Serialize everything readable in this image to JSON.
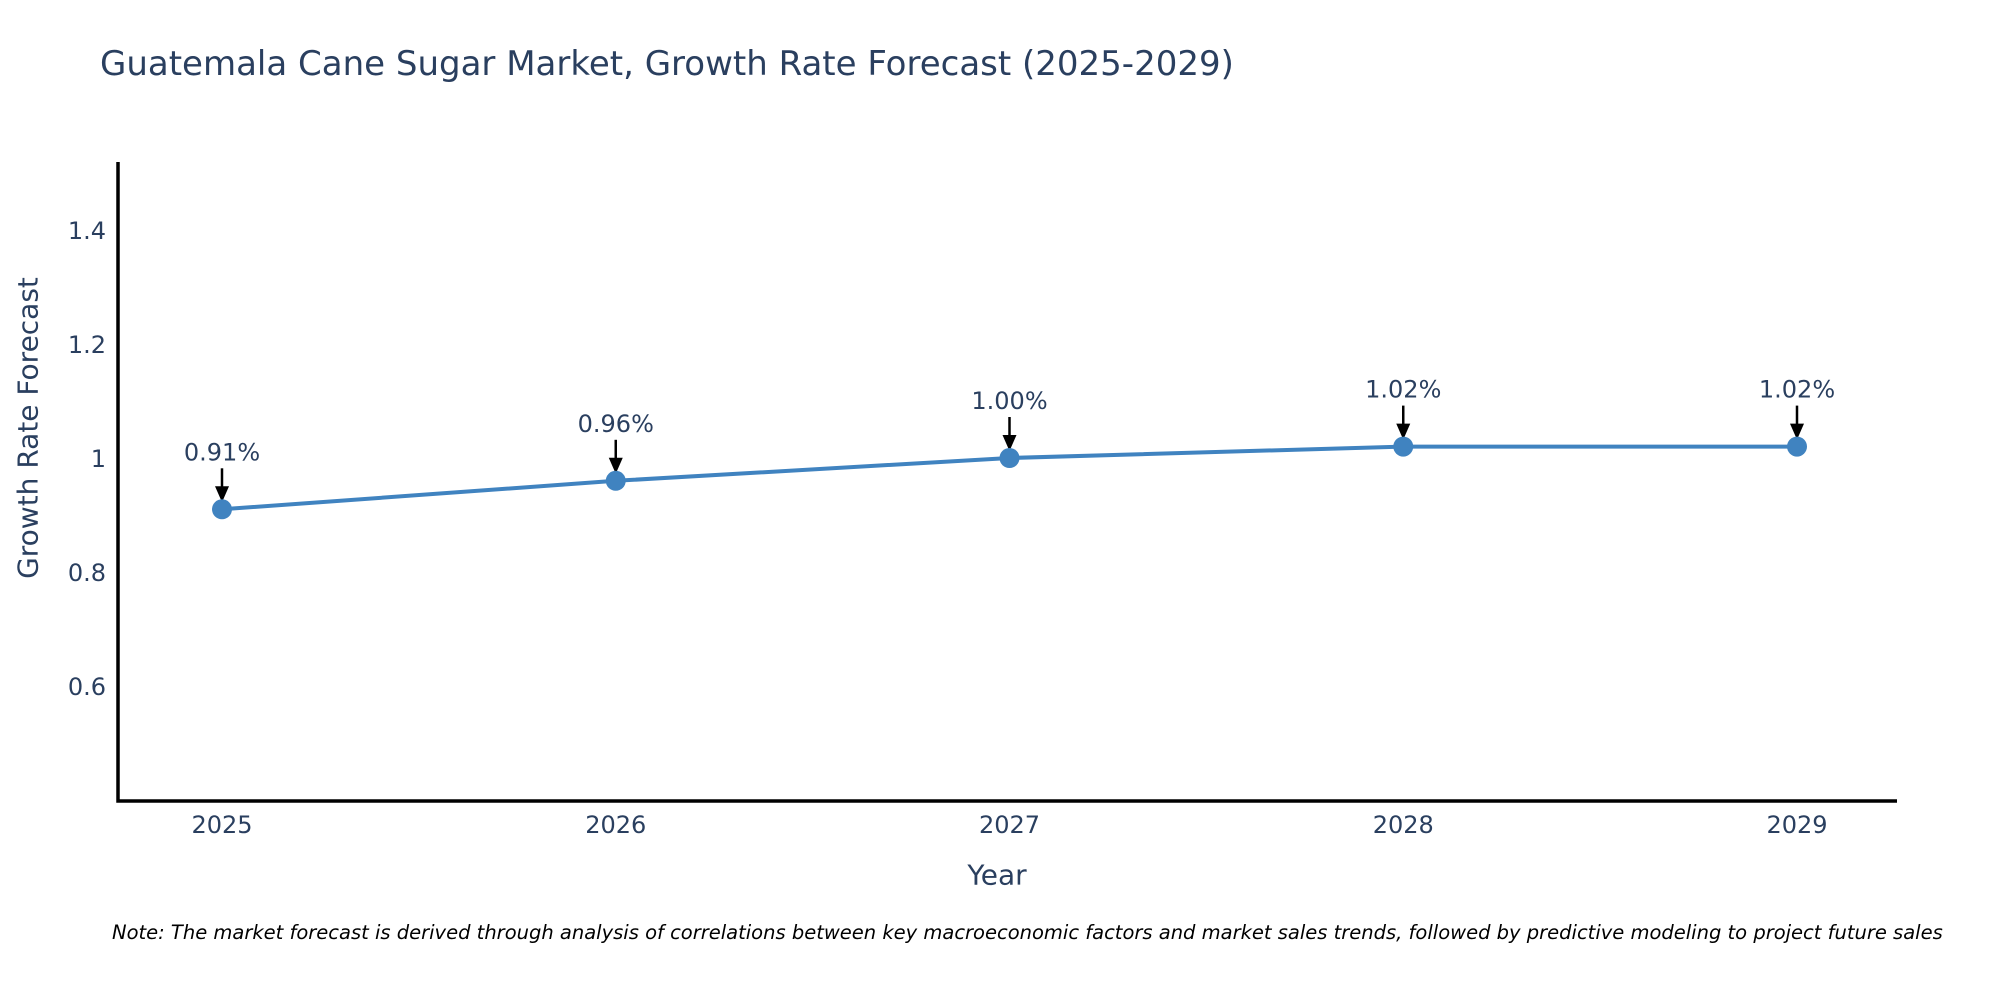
{
  "title": "Guatemala Cane Sugar Market, Growth Rate Forecast (2025-2029)",
  "note": "Note: The market forecast is derived through analysis of correlations between key macroeconomic factors and market sales trends, followed by predictive modeling to project future sales",
  "colors": {
    "line": "#4083c0",
    "marker": "#4083c0",
    "title_text": "#2a3f5f",
    "tick_text": "#2a3f5f",
    "annotation_text": "#2a3f5f",
    "arrow": "#000000",
    "axis_line": "#000000",
    "note_text": "#000000",
    "background": "#ffffff"
  },
  "chart_data": {
    "type": "line",
    "x": [
      2025,
      2026,
      2027,
      2028,
      2029
    ],
    "xticks": [
      "2025",
      "2026",
      "2027",
      "2028",
      "2029"
    ],
    "series": [
      {
        "name": "Growth Rate Forecast",
        "values": [
          0.91,
          0.96,
          1.0,
          1.02,
          1.02
        ]
      }
    ],
    "point_labels": [
      "0.91%",
      "0.96%",
      "1.00%",
      "1.02%",
      "1.02%"
    ],
    "title": "Guatemala Cane Sugar Market, Growth Rate Forecast (2025-2029)",
    "xlabel": "Year",
    "ylabel": "Growth Rate Forecast",
    "yticks": [
      0.6,
      0.8,
      1,
      1.2,
      1.4
    ],
    "ytick_labels": [
      "0.6",
      "0.8",
      "1",
      "1.2",
      "1.4"
    ],
    "ylim": [
      0.4,
      1.52
    ],
    "grid": false,
    "legend_position": "none",
    "annotations": "each point labeled with percent value and black arrow pointing down to marker"
  }
}
